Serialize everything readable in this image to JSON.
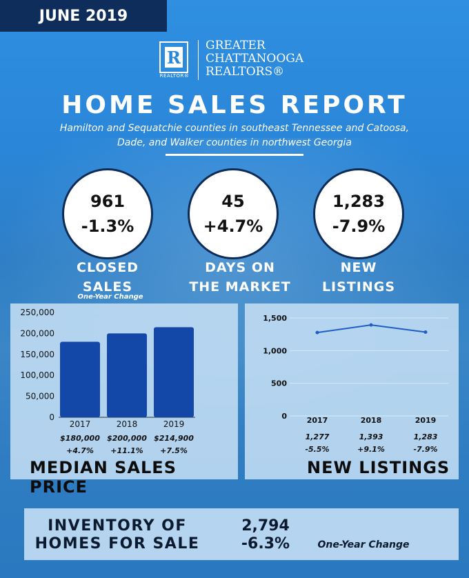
{
  "header": {
    "date_banner": "JUNE 2019",
    "logo": {
      "mark": "R",
      "mark_caption": "REALTOR®",
      "org_lines": [
        "GREATER",
        "CHATTANOOGA",
        "REALTORS®"
      ]
    },
    "title": "HOME SALES REPORT",
    "subtitle_lines": [
      "Hamilton and Sequatchie counties in southeast Tennessee and Catoosa,",
      "Dade, and Walker counties in northwest Georgia"
    ]
  },
  "stats": [
    {
      "value": "961",
      "change": "-1.3%",
      "label_lines": [
        "CLOSED",
        "SALES"
      ]
    },
    {
      "value": "45",
      "change": "+4.7%",
      "label_lines": [
        "DAYS ON",
        "THE MARKET"
      ]
    },
    {
      "value": "1,283",
      "change": "-7.9%",
      "label_lines": [
        "NEW",
        "LISTINGS"
      ]
    }
  ],
  "one_year_change_note": "One-Year Change",
  "chart_data": [
    {
      "type": "bar",
      "title": "MEDIAN SALES PRICE",
      "categories": [
        "2017",
        "2018",
        "2019"
      ],
      "values": [
        180000,
        200000,
        214900
      ],
      "ylim": [
        0,
        250000
      ],
      "yticks": [
        "0",
        "50,000",
        "100,000",
        "150,000",
        "200,000",
        "250,000"
      ],
      "ytick_values": [
        0,
        50000,
        100000,
        150000,
        200000,
        250000
      ],
      "data_labels": [
        "$180,000",
        "$200,000",
        "$214,900"
      ],
      "change_labels": [
        "+4.7%",
        "+11.1%",
        "+7.5%"
      ],
      "bar_color": "#1347a8"
    },
    {
      "type": "line",
      "title": "NEW LISTINGS",
      "categories": [
        "2017",
        "2018",
        "2019"
      ],
      "values": [
        1277,
        1393,
        1283
      ],
      "ylim": [
        0,
        1500
      ],
      "yticks": [
        "0",
        "500",
        "1,000",
        "1,500"
      ],
      "ytick_values": [
        0,
        500,
        1000,
        1500
      ],
      "data_labels": [
        "1,277",
        "1,393",
        "1,283"
      ],
      "change_labels": [
        "-5.5%",
        "+9.1%",
        "-7.9%"
      ],
      "line_color": "#1f5cc4"
    }
  ],
  "inventory": {
    "label_lines": [
      "INVENTORY OF",
      "HOMES FOR SALE"
    ],
    "value": "2,794",
    "change": "-6.3%",
    "note": "One-Year Change"
  },
  "colors": {
    "banner": "#0f2d5a",
    "background": "#2f86d8",
    "panel": "#c4def4"
  }
}
